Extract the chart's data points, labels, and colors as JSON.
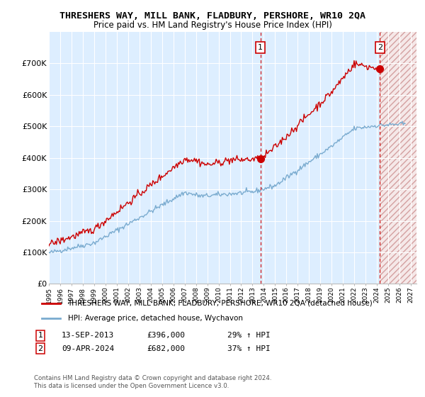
{
  "title": "THRESHERS WAY, MILL BANK, FLADBURY, PERSHORE, WR10 2QA",
  "subtitle": "Price paid vs. HM Land Registry's House Price Index (HPI)",
  "ylim": [
    0,
    800000
  ],
  "yticks": [
    0,
    100000,
    200000,
    300000,
    400000,
    500000,
    600000,
    700000
  ],
  "ytick_labels": [
    "£0",
    "£100K",
    "£200K",
    "£300K",
    "£400K",
    "£500K",
    "£600K",
    "£700K"
  ],
  "legend_line1": "THRESHERS WAY, MILL BANK, FLADBURY, PERSHORE, WR10 2QA (detached house)",
  "legend_line2": "HPI: Average price, detached house, Wychavon",
  "annotation1_date": "13-SEP-2013",
  "annotation1_price_str": "£396,000",
  "annotation1_price": 396000,
  "annotation1_hpi": "29% ↑ HPI",
  "annotation2_date": "09-APR-2024",
  "annotation2_price_str": "£682,000",
  "annotation2_price": 682000,
  "annotation2_hpi": "37% ↑ HPI",
  "footnote1": "Contains HM Land Registry data © Crown copyright and database right 2024.",
  "footnote2": "This data is licensed under the Open Government Licence v3.0.",
  "red_color": "#cc0000",
  "blue_color": "#7aabcf",
  "background_color": "#ddeeff",
  "future_color": "#f5e8e8",
  "grid_color": "#ffffff",
  "title_fontsize": 9.5,
  "subtitle_fontsize": 8.5,
  "ann1_x": 2013.71,
  "ann2_x": 2024.27,
  "xlim_start": 1995,
  "xlim_end": 2027.5,
  "future_start": 2024.27
}
